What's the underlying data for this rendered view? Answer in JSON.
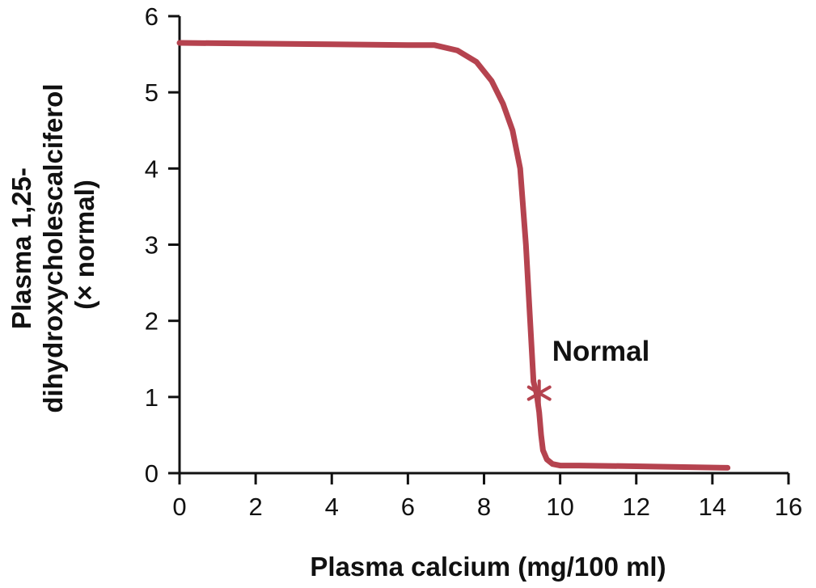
{
  "chart_data": {
    "type": "line",
    "title": "",
    "xlabel": "Plasma calcium (mg/100 ml)",
    "ylabel_lines": [
      "Plasma 1,25-",
      "dihydroxycholescalciferol",
      "(× normal)"
    ],
    "xlim": [
      0,
      16
    ],
    "ylim": [
      0,
      6
    ],
    "x_ticks": [
      0,
      2,
      4,
      6,
      8,
      10,
      12,
      14,
      16
    ],
    "y_ticks": [
      0,
      1,
      2,
      3,
      4,
      5,
      6
    ],
    "grid": false,
    "series": [
      {
        "color": "#b5434f",
        "x": [
          0,
          2,
          4,
          6,
          6.7,
          7.3,
          7.8,
          8.2,
          8.5,
          8.75,
          8.95,
          9.1,
          9.2,
          9.3,
          9.38,
          9.45,
          9.5,
          9.55,
          9.65,
          9.8,
          10.0,
          10.5,
          12,
          14.4
        ],
        "y": [
          5.65,
          5.64,
          5.63,
          5.62,
          5.62,
          5.55,
          5.4,
          5.15,
          4.85,
          4.5,
          4.0,
          3.0,
          2.1,
          1.2,
          1.05,
          0.8,
          0.5,
          0.3,
          0.18,
          0.12,
          0.1,
          0.1,
          0.09,
          0.07
        ]
      }
    ],
    "annotations": [
      {
        "text": "Normal",
        "x": 9.45,
        "y": 1.05,
        "marker": "asterisk"
      }
    ]
  }
}
